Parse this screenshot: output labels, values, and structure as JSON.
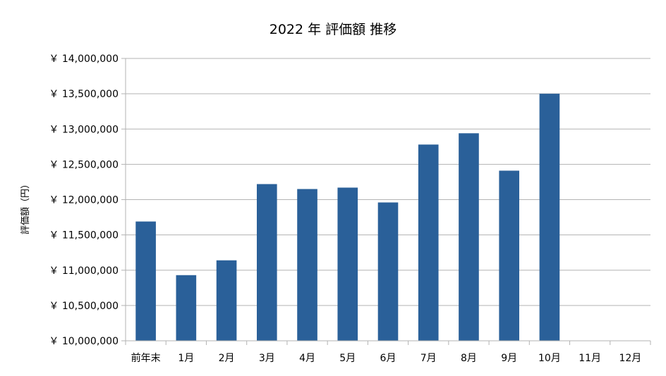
{
  "chart_data": {
    "type": "bar",
    "title": "2022 年 評価額 推移",
    "xlabel": "",
    "ylabel": "評価額（円）",
    "categories": [
      "前年末",
      "1月",
      "2月",
      "3月",
      "4月",
      "5月",
      "6月",
      "7月",
      "8月",
      "9月",
      "10月",
      "11月",
      "12月"
    ],
    "values": [
      11690000,
      10930000,
      11140000,
      12220000,
      12150000,
      12170000,
      11960000,
      12780000,
      12940000,
      12410000,
      13500000,
      null,
      null
    ],
    "ylim": [
      10000000,
      14000000
    ],
    "yticks": [
      10000000,
      10500000,
      11000000,
      11500000,
      12000000,
      12500000,
      13000000,
      13500000,
      14000000
    ],
    "ytick_labels": [
      "￥ 10,000,000",
      "￥ 10,500,000",
      "￥ 11,000,000",
      "￥ 11,500,000",
      "￥ 12,000,000",
      "￥ 12,500,000",
      "￥ 13,000,000",
      "￥ 13,500,000",
      "￥ 14,000,000"
    ],
    "grid": true,
    "bar_color": "#2a6099",
    "grid_color": "#b3b3b3"
  }
}
